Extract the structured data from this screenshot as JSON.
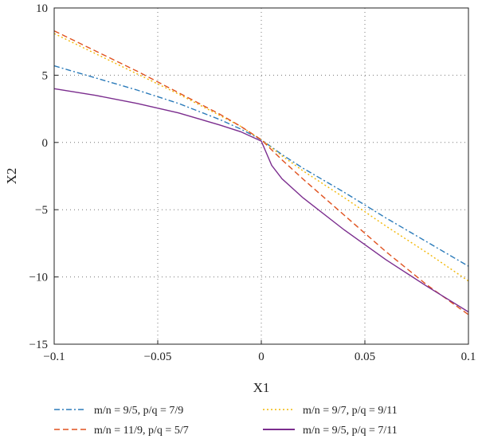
{
  "chart_data": {
    "type": "line",
    "title": "",
    "xlabel": "X1",
    "ylabel": "X2",
    "xlim": [
      -0.1,
      0.1
    ],
    "ylim": [
      -15,
      10
    ],
    "x_ticks": [
      -0.1,
      -0.05,
      0,
      0.05,
      0.1
    ],
    "x_tick_labels": [
      "−0.1",
      "−0.05",
      "0",
      "0.05",
      "0.1"
    ],
    "y_ticks": [
      -15,
      -10,
      -5,
      0,
      5,
      10
    ],
    "y_tick_labels": [
      "−15",
      "−10",
      "−5",
      "0",
      "5",
      "10"
    ],
    "grid": "dotted",
    "legend_position": "bottom",
    "series": [
      {
        "name": "m/n = 9/5, p/q = 7/9",
        "color": "#2b7bba",
        "dash": "dashdot",
        "x": [
          -0.1,
          -0.08,
          -0.06,
          -0.04,
          -0.02,
          -0.01,
          0,
          0.01,
          0.02,
          0.04,
          0.06,
          0.08,
          0.1
        ],
        "y": [
          5.7,
          4.8,
          3.9,
          2.9,
          1.7,
          1.0,
          0.2,
          -0.9,
          -1.9,
          -3.7,
          -5.6,
          -7.4,
          -9.2
        ]
      },
      {
        "name": "m/n = 9/7, p/q = 9/11",
        "color": "#f2b705",
        "dash": "dotted",
        "x": [
          -0.1,
          -0.08,
          -0.06,
          -0.04,
          -0.02,
          -0.01,
          0,
          0.01,
          0.02,
          0.04,
          0.06,
          0.08,
          0.1
        ],
        "y": [
          8.1,
          6.6,
          5.1,
          3.6,
          2.0,
          1.2,
          0.2,
          -1.0,
          -2.1,
          -4.1,
          -6.2,
          -8.2,
          -10.3
        ]
      },
      {
        "name": "m/n = 11/9, p/q = 5/7",
        "color": "#e0521f",
        "dash": "dashed",
        "x": [
          -0.1,
          -0.08,
          -0.06,
          -0.04,
          -0.02,
          -0.01,
          0,
          0.01,
          0.02,
          0.04,
          0.06,
          0.08,
          0.1
        ],
        "y": [
          8.3,
          6.8,
          5.3,
          3.7,
          2.1,
          1.2,
          0.2,
          -1.3,
          -2.7,
          -5.4,
          -8.1,
          -10.6,
          -12.8
        ]
      },
      {
        "name": "m/n = 9/5, p/q = 7/11",
        "color": "#7b2d8e",
        "dash": "solid",
        "x": [
          -0.1,
          -0.08,
          -0.06,
          -0.04,
          -0.02,
          -0.01,
          0,
          0.005,
          0.01,
          0.02,
          0.04,
          0.06,
          0.08,
          0.1
        ],
        "y": [
          4.0,
          3.5,
          2.9,
          2.2,
          1.3,
          0.8,
          0.1,
          -1.7,
          -2.7,
          -4.1,
          -6.5,
          -8.7,
          -10.7,
          -12.6
        ]
      }
    ],
    "legend_order": [
      0,
      2,
      1,
      3
    ]
  }
}
